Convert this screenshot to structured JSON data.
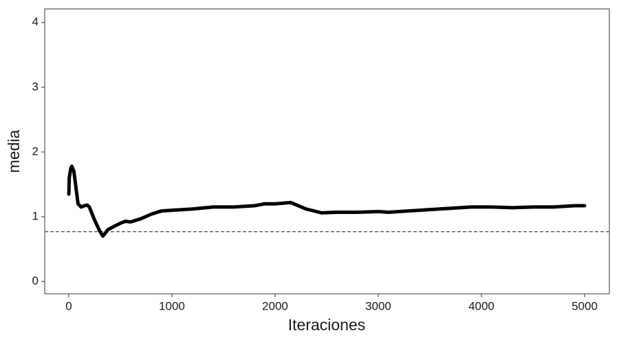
{
  "chart_data": {
    "type": "line",
    "x_label": "Iteraciones",
    "y_label": "media",
    "x": [
      1,
      5,
      10,
      20,
      30,
      50,
      70,
      90,
      120,
      150,
      180,
      200,
      250,
      300,
      330,
      380,
      450,
      500,
      550,
      600,
      700,
      800,
      900,
      1000,
      1200,
      1400,
      1600,
      1800,
      1900,
      2000,
      2150,
      2300,
      2450,
      2600,
      2800,
      3000,
      3100,
      3300,
      3500,
      3700,
      3900,
      4100,
      4300,
      4500,
      4700,
      4900,
      5000
    ],
    "values": [
      1.35,
      1.6,
      1.65,
      1.75,
      1.78,
      1.7,
      1.45,
      1.2,
      1.15,
      1.17,
      1.18,
      1.15,
      0.95,
      0.78,
      0.7,
      0.8,
      0.86,
      0.9,
      0.93,
      0.92,
      0.97,
      1.04,
      1.09,
      1.1,
      1.12,
      1.15,
      1.15,
      1.17,
      1.2,
      1.2,
      1.22,
      1.12,
      1.06,
      1.07,
      1.07,
      1.08,
      1.07,
      1.09,
      1.11,
      1.13,
      1.15,
      1.15,
      1.14,
      1.15,
      1.15,
      1.17,
      1.17
    ],
    "color": "#000000",
    "reference_line": 0.77,
    "xlim": [
      -233,
      5240
    ],
    "xticks": [
      0,
      1000,
      2000,
      3000,
      4000,
      5000
    ],
    "ylim": [
      -0.19,
      4.21
    ],
    "yticks": [
      0,
      1,
      2,
      3,
      4
    ]
  }
}
